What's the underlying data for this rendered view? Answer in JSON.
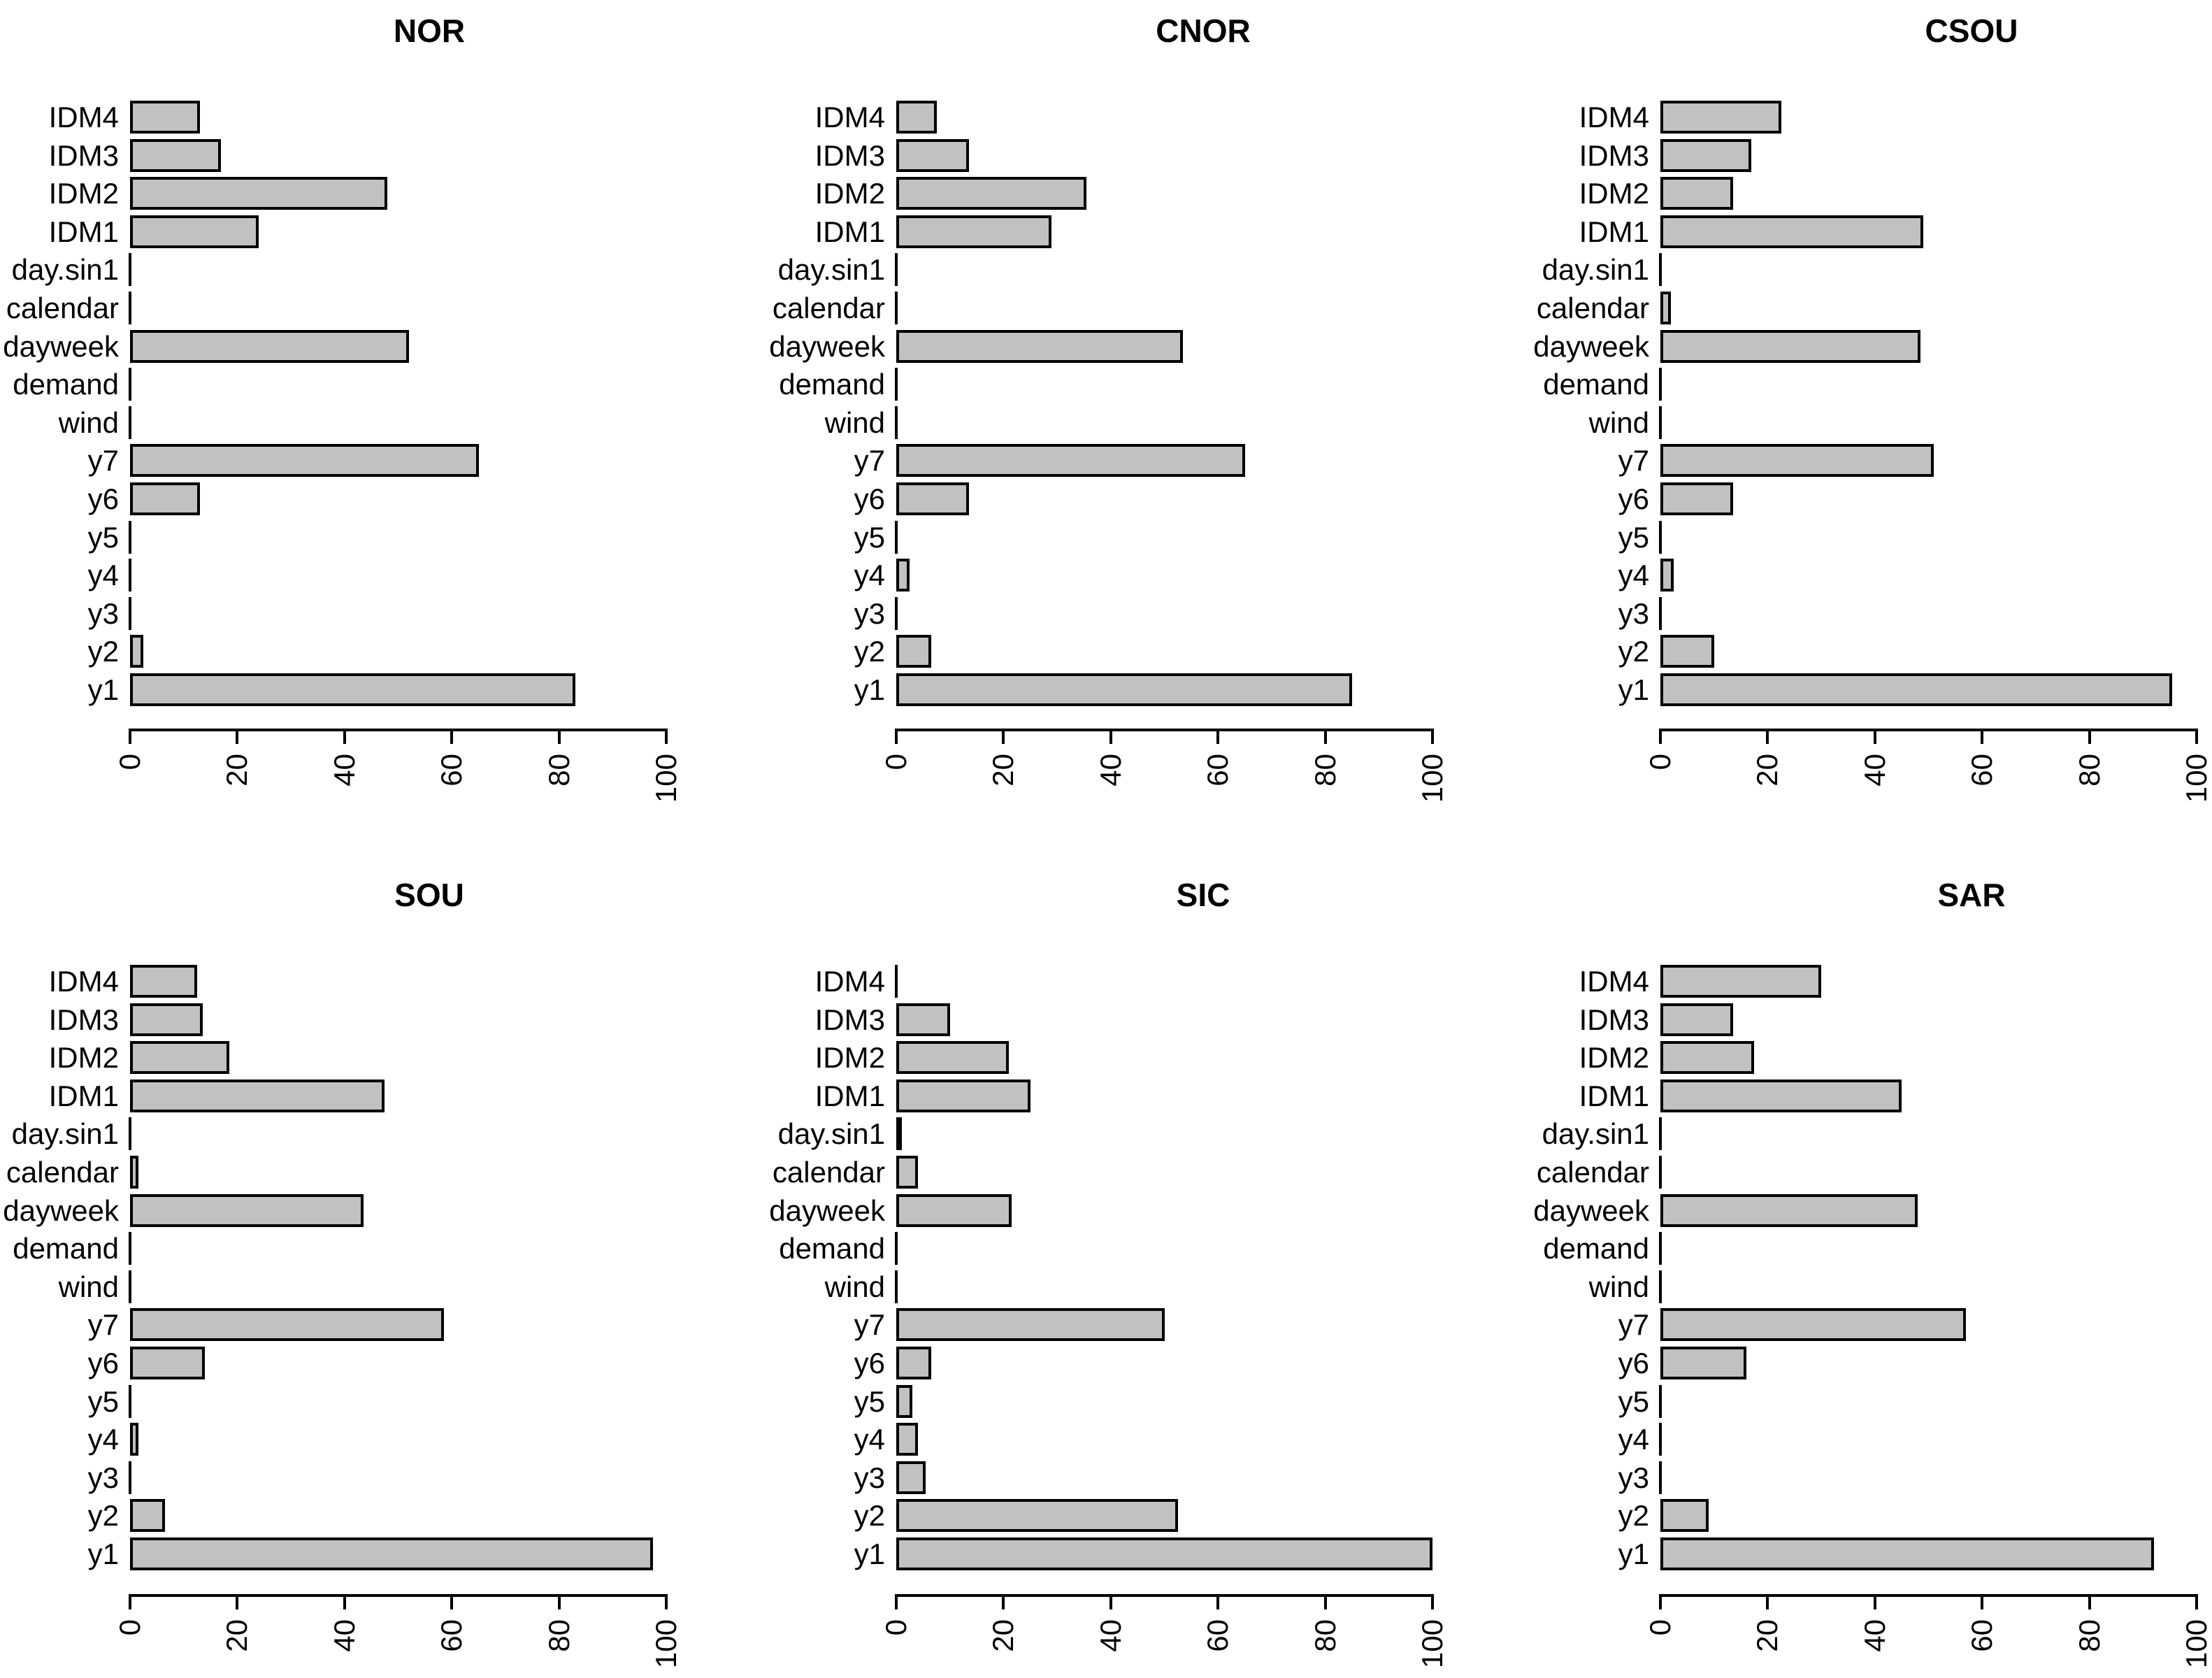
{
  "figure": {
    "grid": "2x3",
    "background": "#ffffff",
    "bar_fill_color": "#c1c1c1",
    "bar_border_color": "#000000",
    "text_color": "#000000"
  },
  "chart_data": [
    {
      "type": "bar",
      "orientation": "horizontal",
      "title": "NOR",
      "categories": [
        "IDM4",
        "IDM3",
        "IDM2",
        "IDM1",
        "day.sin1",
        "calendar",
        "dayweek",
        "demand",
        "wind",
        "y7",
        "y6",
        "y5",
        "y4",
        "y3",
        "y2",
        "y1"
      ],
      "values": [
        13,
        17,
        48,
        24,
        0,
        0,
        52,
        0,
        0,
        65,
        13,
        0,
        0,
        0,
        2.5,
        83
      ],
      "xlabel": "",
      "ylabel": "",
      "xlim": [
        0,
        100
      ],
      "x_ticks": [
        0,
        20,
        40,
        60,
        80,
        100
      ],
      "tick_labels": [
        "0",
        "20",
        "40",
        "60",
        "80",
        "100"
      ],
      "grid": "off",
      "legend": "none"
    },
    {
      "type": "bar",
      "orientation": "horizontal",
      "title": "CNOR",
      "categories": [
        "IDM4",
        "IDM3",
        "IDM2",
        "IDM1",
        "day.sin1",
        "calendar",
        "dayweek",
        "demand",
        "wind",
        "y7",
        "y6",
        "y5",
        "y4",
        "y3",
        "y2",
        "y1"
      ],
      "values": [
        7.5,
        13.5,
        35.5,
        29,
        0,
        0,
        53.5,
        0,
        0,
        65,
        13.5,
        0,
        2.5,
        0,
        6.5,
        85
      ],
      "xlabel": "",
      "ylabel": "",
      "xlim": [
        0,
        100
      ],
      "x_ticks": [
        0,
        20,
        40,
        60,
        80,
        100
      ],
      "tick_labels": [
        "0",
        "20",
        "40",
        "60",
        "80",
        "100"
      ],
      "grid": "off",
      "legend": "none"
    },
    {
      "type": "bar",
      "orientation": "horizontal",
      "title": "CSOU",
      "categories": [
        "IDM4",
        "IDM3",
        "IDM2",
        "IDM1",
        "day.sin1",
        "calendar",
        "dayweek",
        "demand",
        "wind",
        "y7",
        "y6",
        "y5",
        "y4",
        "y3",
        "y2",
        "y1"
      ],
      "values": [
        22.5,
        17,
        13.5,
        49,
        0,
        2,
        48.5,
        0,
        0,
        51,
        13.5,
        0,
        2.5,
        0,
        10,
        95.5
      ],
      "xlabel": "",
      "ylabel": "",
      "xlim": [
        0,
        100
      ],
      "x_ticks": [
        0,
        20,
        40,
        60,
        80,
        100
      ],
      "tick_labels": [
        "0",
        "20",
        "40",
        "60",
        "80",
        "100"
      ],
      "grid": "off",
      "legend": "none"
    },
    {
      "type": "bar",
      "orientation": "horizontal",
      "title": "SOU",
      "categories": [
        "IDM4",
        "IDM3",
        "IDM2",
        "IDM1",
        "day.sin1",
        "calendar",
        "dayweek",
        "demand",
        "wind",
        "y7",
        "y6",
        "y5",
        "y4",
        "y3",
        "y2",
        "y1"
      ],
      "values": [
        12.5,
        13.5,
        18.5,
        47.5,
        0,
        1.5,
        43.5,
        0,
        0,
        58.5,
        14,
        0,
        1.5,
        0,
        6.5,
        97.5
      ],
      "xlabel": "",
      "ylabel": "",
      "xlim": [
        0,
        100
      ],
      "x_ticks": [
        0,
        20,
        40,
        60,
        80,
        100
      ],
      "tick_labels": [
        "0",
        "20",
        "40",
        "60",
        "80",
        "100"
      ],
      "grid": "off",
      "legend": "none"
    },
    {
      "type": "bar",
      "orientation": "horizontal",
      "title": "SIC",
      "categories": [
        "IDM4",
        "IDM3",
        "IDM2",
        "IDM1",
        "day.sin1",
        "calendar",
        "dayweek",
        "demand",
        "wind",
        "y7",
        "y6",
        "y5",
        "y4",
        "y3",
        "y2",
        "y1"
      ],
      "values": [
        0,
        10,
        21,
        25,
        1,
        4,
        21.5,
        0,
        0,
        50,
        6.5,
        3,
        4,
        5.5,
        52.5,
        100
      ],
      "xlabel": "",
      "ylabel": "",
      "xlim": [
        0,
        100
      ],
      "x_ticks": [
        0,
        20,
        40,
        60,
        80,
        100
      ],
      "tick_labels": [
        "0",
        "20",
        "40",
        "60",
        "80",
        "100"
      ],
      "grid": "off",
      "legend": "none"
    },
    {
      "type": "bar",
      "orientation": "horizontal",
      "title": "SAR",
      "categories": [
        "IDM4",
        "IDM3",
        "IDM2",
        "IDM1",
        "day.sin1",
        "calendar",
        "dayweek",
        "demand",
        "wind",
        "y7",
        "y6",
        "y5",
        "y4",
        "y3",
        "y2",
        "y1"
      ],
      "values": [
        30,
        13.5,
        17.5,
        45,
        0,
        0,
        48,
        0,
        0,
        57,
        16,
        0,
        0,
        0,
        9,
        92
      ],
      "xlabel": "",
      "ylabel": "",
      "xlim": [
        0,
        100
      ],
      "x_ticks": [
        0,
        20,
        40,
        60,
        80,
        100
      ],
      "tick_labels": [
        "0",
        "20",
        "40",
        "60",
        "80",
        "100"
      ],
      "grid": "off",
      "legend": "none"
    }
  ]
}
